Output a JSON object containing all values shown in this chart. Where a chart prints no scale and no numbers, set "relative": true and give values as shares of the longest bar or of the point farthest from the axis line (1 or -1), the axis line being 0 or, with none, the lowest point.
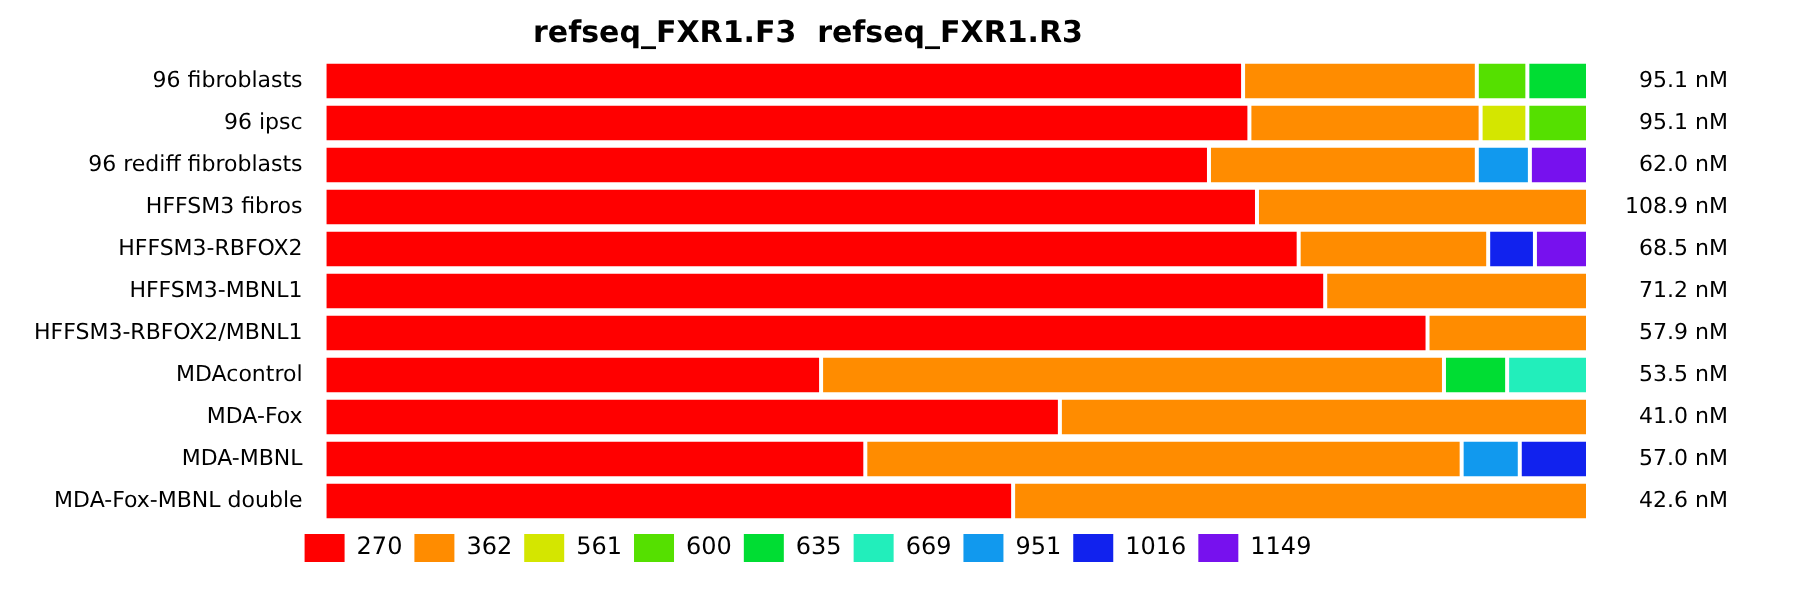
{
  "chart_data": {
    "type": "bar",
    "orientation": "horizontal",
    "stacked": true,
    "relative": true,
    "title": "refseq_FXR1.F3  refseq_FXR1.R3",
    "categories": [
      "96 fibroblasts",
      "96 ipsc",
      "96 rediff fibroblasts",
      "HFFSM3 fibros",
      "HFFSM3-RBFOX2",
      "HFFSM3-MBNL1",
      "HFFSM3-RBFOX2/MBNL1",
      "MDAcontrol",
      "MDA-Fox",
      "MDA-MBNL",
      "MDA-Fox-MBNL double"
    ],
    "series": [
      {
        "name": "270",
        "color": "#ff0000",
        "values": [
          0.727,
          0.732,
          0.7,
          0.738,
          0.771,
          0.792,
          0.873,
          0.393,
          0.582,
          0.428,
          0.545
        ]
      },
      {
        "name": "362",
        "color": "#ff8c00",
        "values": [
          0.185,
          0.183,
          0.212,
          0.262,
          0.15,
          0.208,
          0.127,
          0.493,
          0.418,
          0.472,
          0.455
        ]
      },
      {
        "name": "561",
        "color": "#d4e600",
        "values": [
          null,
          0.037,
          null,
          null,
          null,
          null,
          null,
          null,
          null,
          null,
          null
        ]
      },
      {
        "name": "600",
        "color": "#55e000",
        "values": [
          0.04,
          0.048,
          null,
          null,
          null,
          null,
          null,
          null,
          null,
          null,
          null
        ]
      },
      {
        "name": "635",
        "color": "#00dd33",
        "values": [
          0.048,
          null,
          null,
          null,
          null,
          null,
          null,
          0.05,
          null,
          null,
          null
        ]
      },
      {
        "name": "669",
        "color": "#22eebb",
        "values": [
          null,
          null,
          null,
          null,
          null,
          null,
          null,
          0.064,
          null,
          null,
          null
        ]
      },
      {
        "name": "951",
        "color": "#1199ee",
        "values": [
          null,
          null,
          0.042,
          null,
          null,
          null,
          null,
          null,
          null,
          0.046,
          null
        ]
      },
      {
        "name": "1016",
        "color": "#1122ee",
        "values": [
          null,
          null,
          null,
          null,
          0.037,
          null,
          null,
          null,
          null,
          0.054,
          null
        ]
      },
      {
        "name": "1149",
        "color": "#7711ee",
        "values": [
          null,
          null,
          0.046,
          null,
          0.042,
          null,
          null,
          null,
          null,
          null,
          null
        ]
      }
    ],
    "annotations": [
      "95.1 nM",
      "95.1 nM",
      "62.0 nM",
      "108.9 nM",
      "68.5 nM",
      "71.2 nM",
      "57.9 nM",
      "53.5 nM",
      "41.0 nM",
      "57.0 nM",
      "42.6 nM"
    ],
    "grid": false,
    "legend": "bottom"
  }
}
